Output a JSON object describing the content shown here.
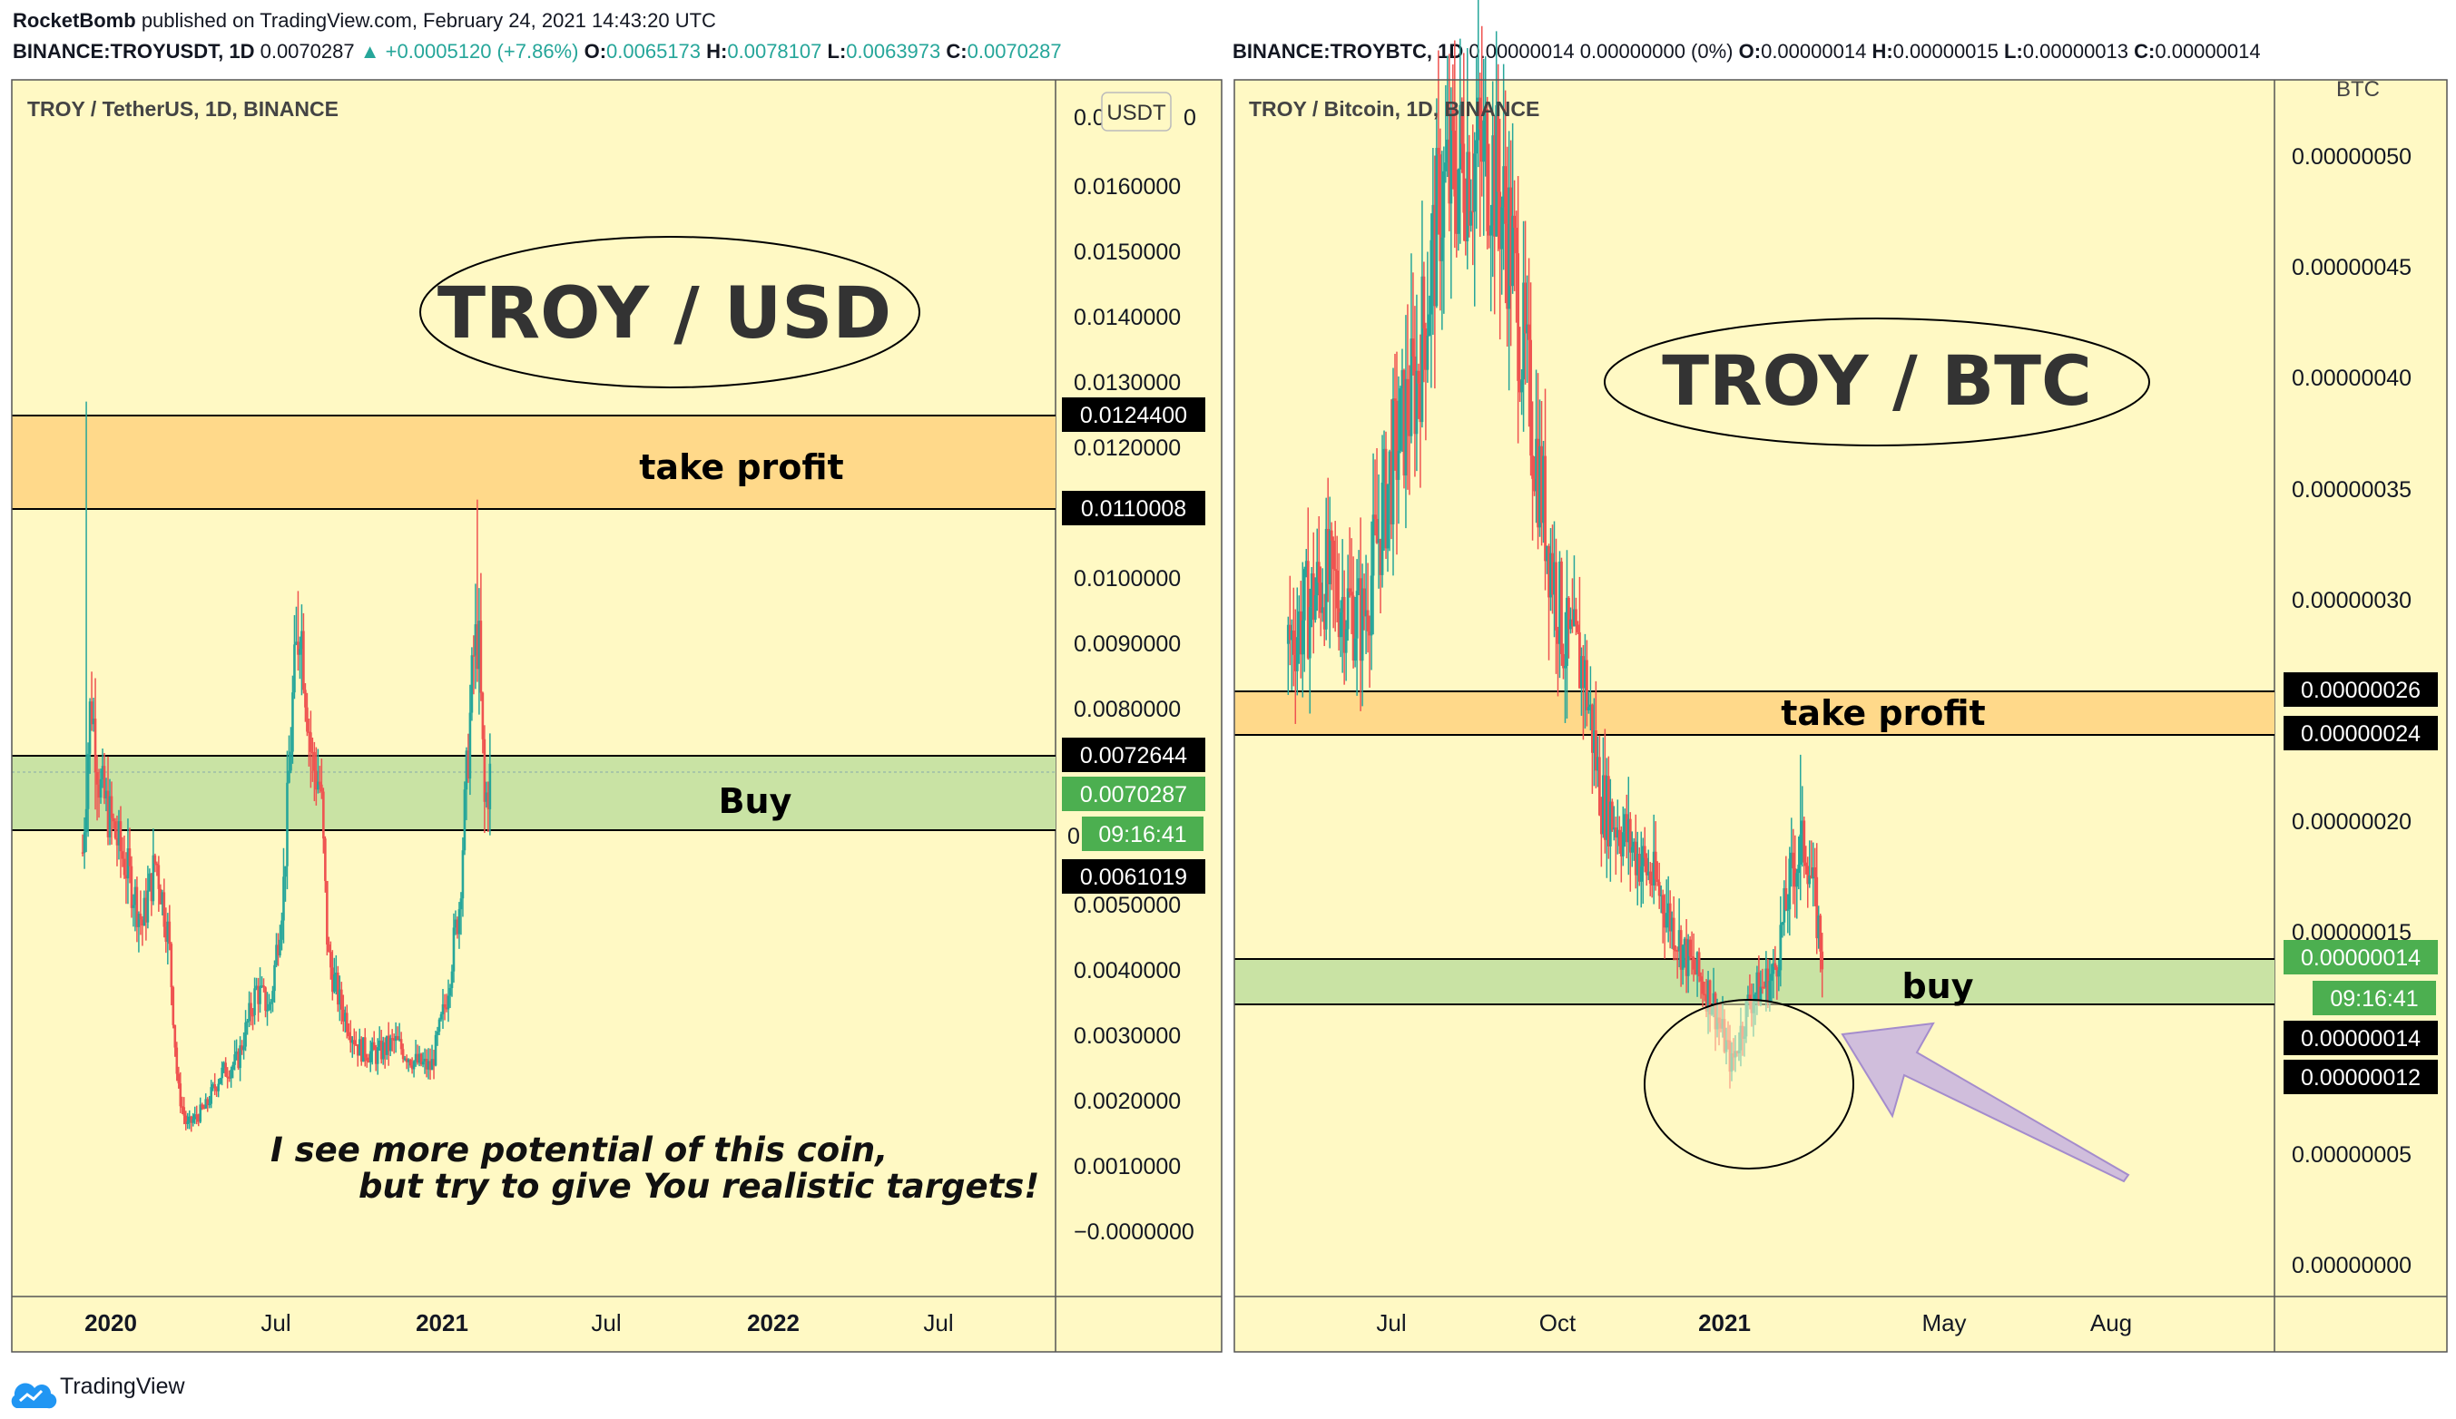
{
  "header": {
    "author": "RocketBomb",
    "published": "published on TradingView.com, February 24, 2021 14:43:20 UTC"
  },
  "left": {
    "ohlc": {
      "symbol": "BINANCE:TROYUSDT, 1D",
      "last": "0.0070287",
      "change": "▲ +0.0005120 (+7.86%)",
      "o_label": "O:",
      "o": "0.0065173",
      "h_label": "H:",
      "h": "0.0078107",
      "l_label": "L:",
      "l": "0.0063973",
      "c_label": "C:",
      "c": "0.0070287"
    },
    "pane_title": "TROY / TetherUS, 1D, BINANCE",
    "currency_badge": "USDT",
    "big_label": "TROY / USD",
    "take_profit": "take profit",
    "buy": "Buy",
    "note_line1": "I see more potential of this coin,",
    "note_line2": "but try to give You realistic targets!",
    "y_ticks": [
      "0.0160000",
      "0.0150000",
      "0.0140000",
      "0.0130000",
      "0.0120000",
      "0.0100000",
      "0.0090000",
      "0.0080000",
      "0.0050000",
      "0.0040000",
      "0.0030000",
      "0.0020000",
      "0.0010000",
      "−0.0000000"
    ],
    "y_top_tick": "0.0",
    "price_tags": {
      "tp_top": "0.0124400",
      "tp_bottom": "0.0110008",
      "buy_top": "0.0072644",
      "current": "0.0070287",
      "countdown": "09:16:41",
      "buy_bottom": "0.0061019"
    },
    "x_ticks": [
      "2020",
      "Jul",
      "2021",
      "Jul",
      "2022",
      "Jul"
    ]
  },
  "right": {
    "ohlc": {
      "symbol": "BINANCE:TROYBTC, 1D",
      "values": "0.00000014 0.00000000 (0%)",
      "o_label": "O:",
      "o": "0.00000014",
      "h_label": "H:",
      "h": "0.00000015",
      "l_label": "L:",
      "l": "0.00000013",
      "c_label": "C:",
      "c": "0.00000014"
    },
    "pane_title": "TROY / Bitcoin, 1D, BINANCE",
    "currency_label": "BTC",
    "big_label": "TROY / BTC",
    "take_profit": "take profit",
    "buy": "buy",
    "y_ticks": [
      "0.00000050",
      "0.00000045",
      "0.00000040",
      "0.00000035",
      "0.00000030",
      "0.00000020",
      "0.00000015",
      "0.00000005",
      "0.00000000"
    ],
    "price_tags": {
      "tp_top": "0.00000026",
      "tp_bottom": "0.00000024",
      "current": "0.00000014",
      "countdown": "09:16:41",
      "buy_top": "0.00000014",
      "buy_bottom": "0.00000012"
    },
    "x_ticks": [
      "Jul",
      "Oct",
      "2021",
      "May",
      "Aug"
    ]
  },
  "footer": {
    "brand": "TradingView"
  },
  "colors": {
    "pane_bg": "#fff9c4",
    "take_profit_band": "#ffd98a",
    "buy_band": "#c9e3a4",
    "tag_black": "#000000",
    "tag_green": "#4caf50",
    "candle_up": "#26a69a",
    "candle_down": "#ef5350",
    "arrow": "#c8b4e0"
  },
  "chart_data": [
    {
      "type": "candlestick",
      "title": "TROY / TetherUS, 1D, BINANCE",
      "x_ticks": [
        "2020",
        "Jul",
        "2021",
        "Jul",
        "2022",
        "Jul"
      ],
      "ylim": [
        -0.0005,
        0.0175
      ],
      "close_path": [
        [
          "2019-12-01",
          0.0058
        ],
        [
          "2019-12-10",
          0.0082
        ],
        [
          "2019-12-20",
          0.0068
        ],
        [
          "2020-01-05",
          0.0061
        ],
        [
          "2020-01-20",
          0.0055
        ],
        [
          "2020-02-05",
          0.0047
        ],
        [
          "2020-02-20",
          0.0057
        ],
        [
          "2020-03-05",
          0.0045
        ],
        [
          "2020-03-15",
          0.0022
        ],
        [
          "2020-03-25",
          0.0016
        ],
        [
          "2020-04-15",
          0.0019
        ],
        [
          "2020-05-01",
          0.0024
        ],
        [
          "2020-05-20",
          0.0026
        ],
        [
          "2020-06-10",
          0.0037
        ],
        [
          "2020-06-25",
          0.0034
        ],
        [
          "2020-07-10",
          0.0053
        ],
        [
          "2020-07-20",
          0.0081
        ],
        [
          "2020-07-28",
          0.0095
        ],
        [
          "2020-08-10",
          0.0072
        ],
        [
          "2020-08-20",
          0.0068
        ],
        [
          "2020-08-28",
          0.0042
        ],
        [
          "2020-09-10",
          0.0035
        ],
        [
          "2020-10-01",
          0.0028
        ],
        [
          "2020-10-20",
          0.0027
        ],
        [
          "2020-11-10",
          0.0029
        ],
        [
          "2020-12-01",
          0.0026
        ],
        [
          "2020-12-20",
          0.0025
        ],
        [
          "2021-01-05",
          0.0035
        ],
        [
          "2021-01-20",
          0.005
        ],
        [
          "2021-02-05",
          0.0088
        ],
        [
          "2021-02-10",
          0.0092
        ],
        [
          "2021-02-17",
          0.0065
        ],
        [
          "2021-02-24",
          0.0070287
        ]
      ],
      "levels": {
        "take_profit": [
          0.0110008,
          0.01244
        ],
        "buy": [
          0.0061019,
          0.0072644
        ]
      }
    },
    {
      "type": "candlestick",
      "title": "TROY / Bitcoin, 1D, BINANCE",
      "x_ticks": [
        "Jul",
        "Oct",
        "2021",
        "May",
        "Aug"
      ],
      "ylim": [
        -1e-08,
        5.2e-07
      ],
      "close_path": [
        [
          "2020-05-05",
          2.8e-07
        ],
        [
          "2020-05-25",
          3.1e-07
        ],
        [
          "2020-06-15",
          2.9e-07
        ],
        [
          "2020-07-01",
          3.6e-07
        ],
        [
          "2020-07-15",
          4e-07
        ],
        [
          "2020-07-28",
          4.8e-07
        ],
        [
          "2020-08-10",
          5e-07
        ],
        [
          "2020-08-25",
          5e-07
        ],
        [
          "2020-09-05",
          4.6e-07
        ],
        [
          "2020-09-15",
          3.9e-07
        ],
        [
          "2020-09-25",
          3.3e-07
        ],
        [
          "2020-10-05",
          2.8e-07
        ],
        [
          "2020-10-15",
          2.7e-07
        ],
        [
          "2020-10-25",
          2.1e-07
        ],
        [
          "2020-11-10",
          1.9e-07
        ],
        [
          "2020-11-25",
          1.7e-07
        ],
        [
          "2020-12-10",
          1.4e-07
        ],
        [
          "2020-12-25",
          1.2e-07
        ],
        [
          "2021-01-05",
          9e-08
        ],
        [
          "2021-01-15",
          1.2e-07
        ],
        [
          "2021-01-28",
          1.3e-07
        ],
        [
          "2021-02-08",
          1.8e-07
        ],
        [
          "2021-02-15",
          1.9e-07
        ],
        [
          "2021-02-24",
          1.4e-07
        ]
      ],
      "levels": {
        "take_profit": [
          2.4e-07,
          2.6e-07
        ],
        "buy": [
          1.2e-07,
          1.4e-07
        ]
      }
    }
  ]
}
